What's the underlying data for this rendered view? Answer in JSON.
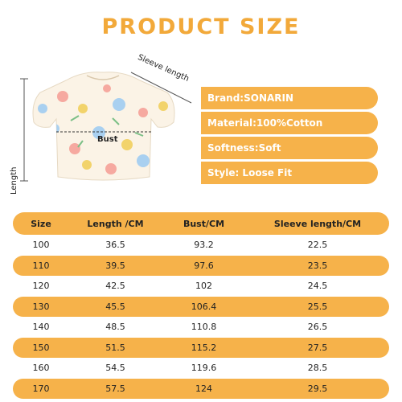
{
  "title": "PRODUCT SIZE",
  "diagram": {
    "sleeve_length_label": "Sleeve length",
    "length_label": "Length",
    "bust_label": "Bust"
  },
  "info": [
    "Brand:SONARIN",
    "Material:100%Cotton",
    "Softness:Soft",
    "Style: Loose Fit"
  ],
  "table": {
    "headers": [
      "Size",
      "Length /CM",
      "Bust/CM",
      "Sleeve length/CM"
    ],
    "rows": [
      [
        "100",
        "36.5",
        "93.2",
        "22.5"
      ],
      [
        "110",
        "39.5",
        "97.6",
        "23.5"
      ],
      [
        "120",
        "42.5",
        "102",
        "24.5"
      ],
      [
        "130",
        "45.5",
        "106.4",
        "25.5"
      ],
      [
        "140",
        "48.5",
        "110.8",
        "26.5"
      ],
      [
        "150",
        "51.5",
        "115.2",
        "27.5"
      ],
      [
        "160",
        "54.5",
        "119.6",
        "28.5"
      ],
      [
        "170",
        "57.5",
        "124",
        "29.5"
      ]
    ]
  },
  "colors": {
    "accent": "#f6b24a",
    "title": "#f2a93a",
    "info_bg": "#f6b24a",
    "text": "#222222"
  },
  "icons": {
    "garment": "floral-puff-sleeve-top-illustration"
  }
}
